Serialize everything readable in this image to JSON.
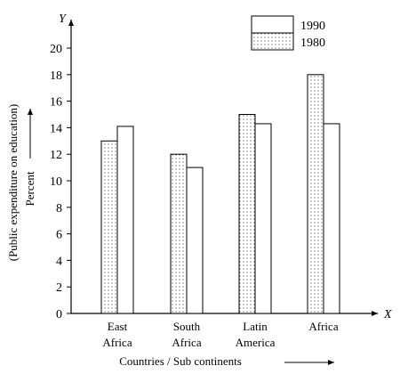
{
  "chart_data": {
    "type": "bar",
    "categories": [
      [
        "East",
        "Africa"
      ],
      [
        "South",
        "Africa"
      ],
      [
        "Latin",
        "America"
      ],
      [
        "Africa"
      ]
    ],
    "series": [
      {
        "name": "1980",
        "values": [
          13,
          12,
          15,
          18
        ],
        "pattern": "dotted"
      },
      {
        "name": "1990",
        "values": [
          14.1,
          11,
          14.3,
          14.3
        ],
        "pattern": "plain"
      }
    ],
    "ylim": [
      0,
      22
    ],
    "yticks": [
      0,
      2,
      4,
      6,
      8,
      10,
      12,
      14,
      16,
      18,
      20
    ],
    "xlabel": "Countries / Sub continents",
    "ylabel_line1": "(Public expenditure on education)",
    "ylabel_line2": "Percent",
    "x_axis_letter": "X",
    "y_axis_letter": "Y",
    "legend": {
      "placement": "top-right",
      "order": [
        "1990",
        "1980"
      ]
    },
    "grid": false
  }
}
